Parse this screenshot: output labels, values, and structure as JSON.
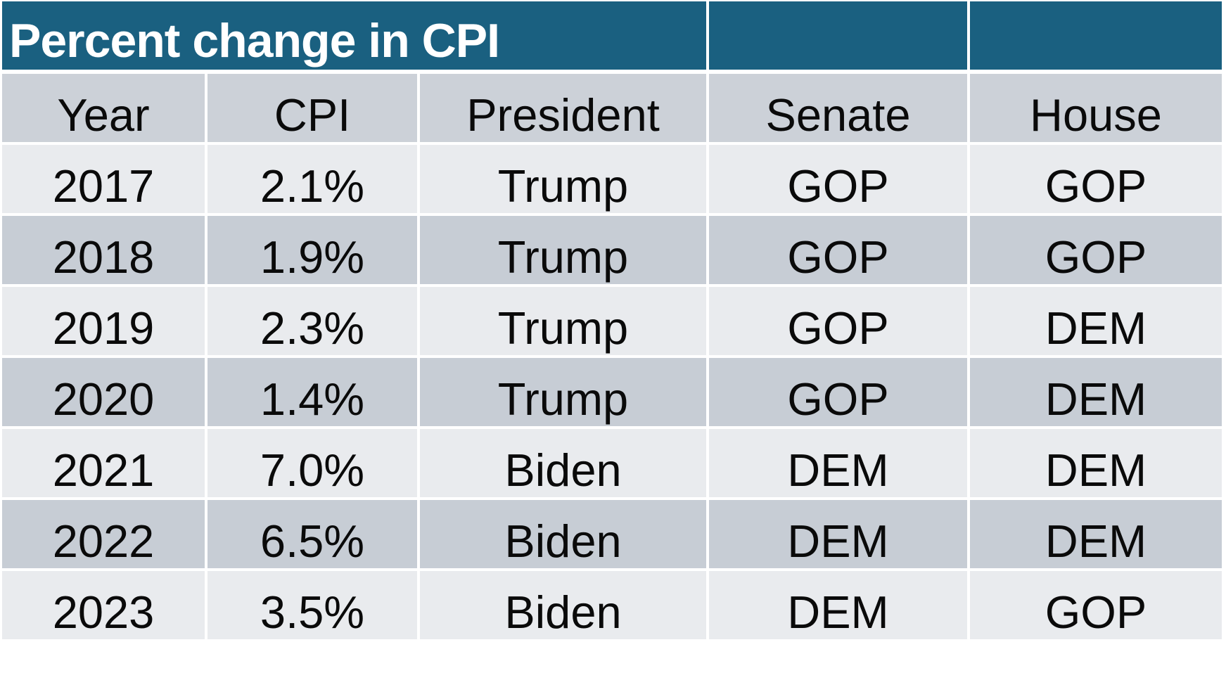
{
  "chart_data": {
    "type": "table",
    "title": "Percent change in CPI",
    "columns": [
      "Year",
      "CPI",
      "President",
      "Senate",
      "House"
    ],
    "rows": [
      [
        "2017",
        "2.1%",
        "Trump",
        "GOP",
        "GOP"
      ],
      [
        "2018",
        "1.9%",
        "Trump",
        "GOP",
        "GOP"
      ],
      [
        "2019",
        "2.3%",
        "Trump",
        "GOP",
        "DEM"
      ],
      [
        "2020",
        "1.4%",
        "Trump",
        "GOP",
        "DEM"
      ],
      [
        "2021",
        "7.0%",
        "Biden",
        "DEM",
        "DEM"
      ],
      [
        "2022",
        "6.5%",
        "Biden",
        "DEM",
        "DEM"
      ],
      [
        "2023",
        "3.5%",
        "Biden",
        "DEM",
        "GOP"
      ]
    ],
    "layout": {
      "banner_merged_over_columns": [
        "Year",
        "CPI",
        "President"
      ],
      "striped_rows": true,
      "first_data_row_shade": "light"
    }
  },
  "colors": {
    "banner": "#1a6080",
    "title_text": "#ffffff",
    "header_row": "#ccd1d8",
    "row_light": "#e9ebee",
    "row_dark": "#c7cdd5",
    "body_text": "#0a0a0a",
    "gap": "#ffffff"
  }
}
